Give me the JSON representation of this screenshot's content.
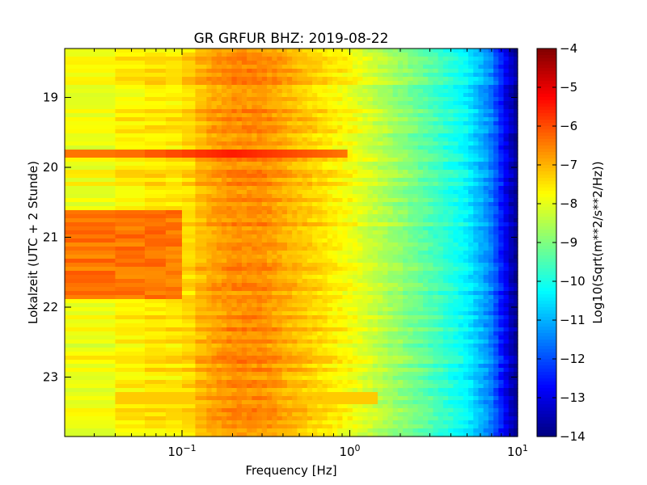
{
  "chart_data": {
    "type": "heatmap",
    "title": "GR GRFUR BHZ: 2019-08-22",
    "xlabel": "Frequency [Hz]",
    "ylabel": "Lokalzeit (UTC + 2 Stunde)",
    "x_scale": "log",
    "xlim": [
      0.02,
      10
    ],
    "ylim": [
      18.3,
      23.85
    ],
    "y_inverted": true,
    "x_ticks": [
      {
        "value": 0.1,
        "base": "10",
        "exp": "−1"
      },
      {
        "value": 1,
        "base": "10",
        "exp": "0"
      },
      {
        "value": 10,
        "base": "10",
        "exp": "1"
      }
    ],
    "y_ticks": [
      {
        "value": 19,
        "label": "19"
      },
      {
        "value": 20,
        "label": "20"
      },
      {
        "value": 21,
        "label": "21"
      },
      {
        "value": 22,
        "label": "22"
      },
      {
        "value": 23,
        "label": "23"
      }
    ],
    "colorbar": {
      "label": "Log10(Sqrt(m**2/s**2/Hz))",
      "colormap": "jet",
      "range": [
        -14,
        -4
      ],
      "ticks": [
        {
          "value": -4,
          "label": "−4"
        },
        {
          "value": -5,
          "label": "−5"
        },
        {
          "value": -6,
          "label": "−6"
        },
        {
          "value": -7,
          "label": "−7"
        },
        {
          "value": -8,
          "label": "−8"
        },
        {
          "value": -9,
          "label": "−9"
        },
        {
          "value": -10,
          "label": "−10"
        },
        {
          "value": -11,
          "label": "−11"
        },
        {
          "value": -12,
          "label": "−12"
        },
        {
          "value": -13,
          "label": "−13"
        },
        {
          "value": -14,
          "label": "−14"
        }
      ]
    },
    "grid": false,
    "spectrum_profile": {
      "frequencies_hz": [
        0.02,
        0.04,
        0.06,
        0.1,
        0.14,
        0.2,
        0.3,
        0.5,
        1,
        2,
        3,
        5,
        7,
        9,
        10
      ],
      "typical_values": [
        -8.0,
        -7.7,
        -7.5,
        -7.5,
        -6.9,
        -6.6,
        -6.6,
        -7.1,
        -7.8,
        -8.8,
        -9.4,
        -10.3,
        -11.5,
        -13.3,
        -13.8
      ]
    },
    "events": [
      {
        "time": 19.8,
        "f_min_hz": 0.02,
        "f_max_hz": 1.0,
        "peak_value": -5.5,
        "peak_freq_hz": 0.2
      },
      {
        "time": 23.3,
        "f_min_hz": 0.04,
        "f_max_hz": 1.5,
        "peak_value": -6.6
      },
      {
        "time_start": 20.6,
        "time_end": 21.9,
        "f_min_hz": 0.02,
        "f_max_hz": 0.1,
        "peak_value": -6.0
      }
    ]
  }
}
